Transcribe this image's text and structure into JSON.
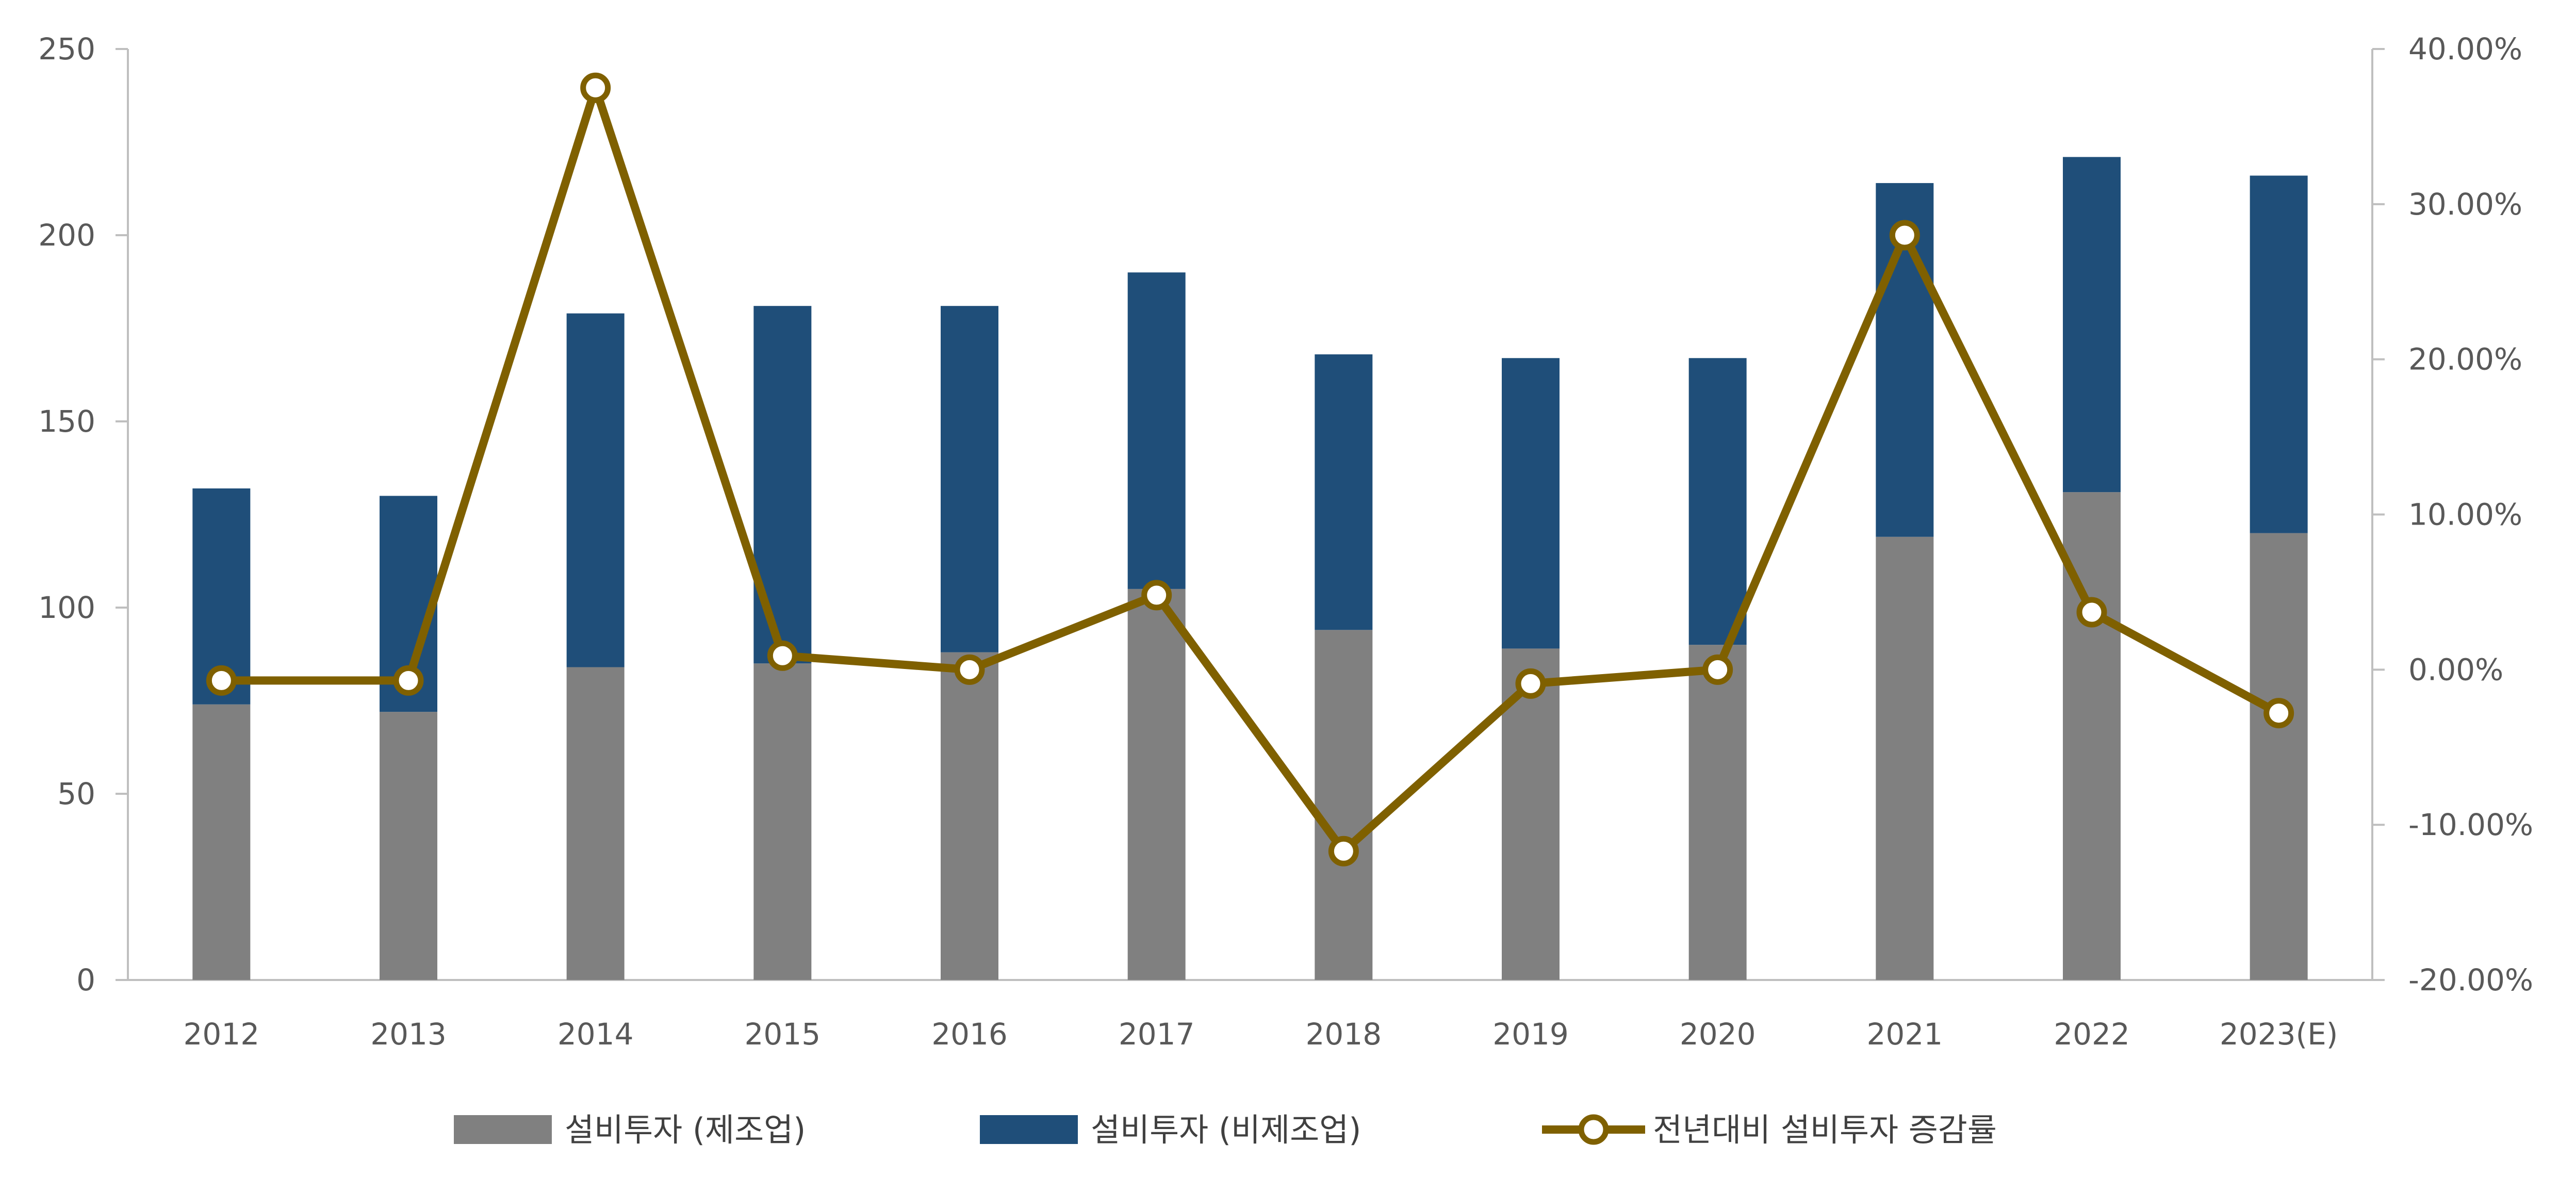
{
  "chart_data": {
    "type": "bar",
    "stacked": true,
    "categories": [
      "2012",
      "2013",
      "2014",
      "2015",
      "2016",
      "2017",
      "2018",
      "2019",
      "2020",
      "2021",
      "2022",
      "2023(E)"
    ],
    "series": [
      {
        "name": "설비투자 (제조업)",
        "kind": "bar",
        "axis": "left",
        "color": "#808080",
        "values": [
          74,
          72,
          84,
          85,
          88,
          105,
          94,
          89,
          90,
          119,
          131,
          120
        ]
      },
      {
        "name": "설비투자 (비제조업)",
        "kind": "bar",
        "axis": "left",
        "color": "#1f4e79",
        "values": [
          58,
          58,
          95,
          96,
          93,
          85,
          74,
          78,
          77,
          95,
          90,
          96
        ]
      },
      {
        "name": "전년대비 설비투자 증감률",
        "kind": "line",
        "axis": "right",
        "color": "#7f6000",
        "values": [
          -0.7,
          -0.7,
          37.5,
          0.9,
          0.0,
          4.8,
          -11.7,
          -0.9,
          0.0,
          28.0,
          3.7,
          -2.8
        ]
      }
    ],
    "left_axis": {
      "range": [
        0,
        250
      ],
      "ticks": [
        0,
        50,
        100,
        150,
        200,
        250
      ],
      "tick_labels": [
        "0",
        "50",
        "100",
        "150",
        "200",
        "250"
      ]
    },
    "right_axis": {
      "range": [
        -20,
        40
      ],
      "ticks": [
        -20,
        -10,
        0,
        10,
        20,
        30,
        40
      ],
      "tick_labels": [
        "-20.00%",
        "-10.00%",
        "0.00%",
        "10.00%",
        "20.00%",
        "30.00%",
        "40.00%"
      ]
    },
    "title": "",
    "xlabel": "",
    "ylabel": "",
    "grid": false,
    "legend_position": "bottom"
  }
}
